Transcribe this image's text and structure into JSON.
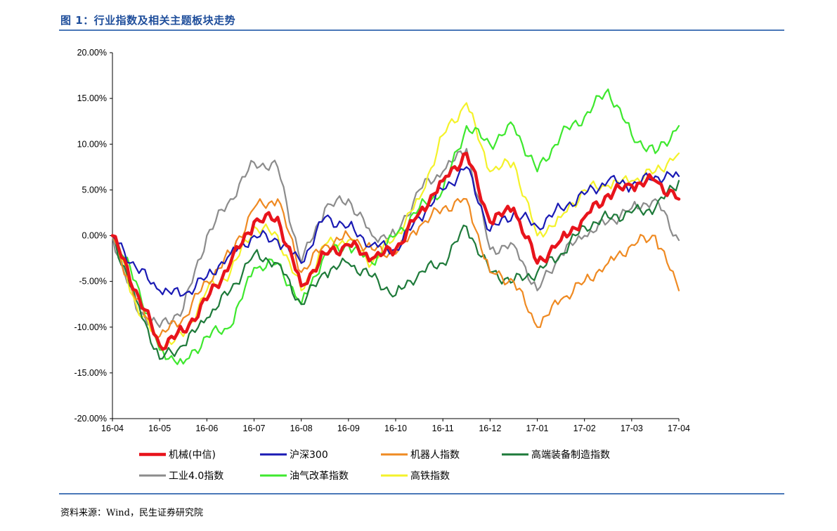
{
  "header": {
    "figure_title": "图 1：行业指数及相关主题板块走势"
  },
  "footer": {
    "source": "资料来源：Wind，民生证券研究院"
  },
  "chart_data": {
    "type": "line",
    "title": "",
    "xlabel": "",
    "ylabel": "",
    "ylim": [
      -20,
      20
    ],
    "y_ticks": [
      20,
      15,
      10,
      5,
      0,
      -5,
      -10,
      -15,
      -20
    ],
    "y_tick_labels": [
      "20.00%",
      "15.00%",
      "10.00%",
      "5.00%",
      "0.00%",
      "-5.00%",
      "-10.00%",
      "-15.00%",
      "-20.00%"
    ],
    "x_tick_labels": [
      "16-04",
      "16-05",
      "16-06",
      "16-07",
      "16-08",
      "16-09",
      "16-10",
      "16-11",
      "16-12",
      "17-01",
      "17-02",
      "17-03",
      "17-04"
    ],
    "x": [
      "16-04",
      "16-04.5",
      "16-05",
      "16-05.5",
      "16-06",
      "16-06.5",
      "16-07",
      "16-07.5",
      "16-08",
      "16-08.5",
      "16-09",
      "16-09.5",
      "16-10",
      "16-10.5",
      "16-11",
      "16-11.5",
      "16-12",
      "16-12.5",
      "17-01",
      "17-01.5",
      "17-02",
      "17-02.5",
      "17-03",
      "17-03.5",
      "17-04"
    ],
    "grid": false,
    "legend_position": "bottom",
    "legend_columns": 4,
    "series": [
      {
        "name": "机械(中信)",
        "color": "#e8141c",
        "width": 4.5,
        "values": [
          0,
          -6,
          -12,
          -10.5,
          -7,
          -3,
          1.5,
          2,
          -5.5,
          -2,
          -1,
          -2.5,
          -1.5,
          2.5,
          6,
          9,
          1.5,
          3,
          -3,
          -0.5,
          2,
          4.5,
          5.5,
          6,
          4
        ]
      },
      {
        "name": "沪深300",
        "color": "#1a1ab4",
        "width": 2.2,
        "values": [
          0,
          -3.5,
          -6,
          -6.5,
          -4.5,
          -2,
          0,
          -0.5,
          -3,
          2,
          1,
          -1,
          -1.5,
          2,
          5,
          7.5,
          0.5,
          2.5,
          1,
          3,
          4.5,
          6,
          5.5,
          6.5,
          6.5
        ]
      },
      {
        "name": "机器人指数",
        "color": "#ef8a22",
        "width": 2.2,
        "values": [
          0,
          -7,
          -11,
          -9,
          -5,
          -2,
          3,
          4,
          -4,
          -1,
          0,
          -1.5,
          -2,
          1,
          3,
          4,
          -4,
          -5,
          -10,
          -7,
          -5,
          -3,
          -1,
          0,
          -6
        ]
      },
      {
        "name": "高端装备制造指数",
        "color": "#1e7a3a",
        "width": 2.2,
        "values": [
          0,
          -7,
          -13.5,
          -12,
          -9,
          -6,
          -2,
          -3,
          -7.5,
          -4,
          -3,
          -4.5,
          -6.5,
          -4,
          -3,
          1,
          -4,
          -5,
          -4,
          -2,
          1,
          2,
          2.5,
          3,
          6
        ]
      },
      {
        "name": "工业4.0指数",
        "color": "#8c8c8c",
        "width": 2.2,
        "values": [
          0,
          -8,
          -10,
          -8,
          0,
          4,
          8,
          7.5,
          -3,
          3,
          4,
          0,
          0,
          5,
          7,
          9.5,
          -1.5,
          -1,
          -6,
          -2,
          0,
          1.5,
          3,
          4,
          -0.5
        ]
      },
      {
        "name": "油气改革指数",
        "color": "#3ee82e",
        "width": 2.2,
        "values": [
          0,
          -5,
          -12.5,
          -14,
          -11,
          -10,
          -3.5,
          -3,
          -7.5,
          -2,
          -1,
          -3,
          0,
          3,
          5,
          12,
          10,
          12,
          7,
          11,
          13,
          16,
          11,
          9,
          12
        ]
      },
      {
        "name": "高铁指数",
        "color": "#f4f22a",
        "width": 2.2,
        "values": [
          0,
          -7.5,
          -12,
          -11,
          -6,
          -4,
          1,
          0,
          -6,
          -1,
          -0.5,
          -3,
          0,
          4,
          11,
          14.5,
          7,
          8,
          0,
          2,
          5,
          5.5,
          6,
          7,
          9
        ]
      }
    ]
  }
}
